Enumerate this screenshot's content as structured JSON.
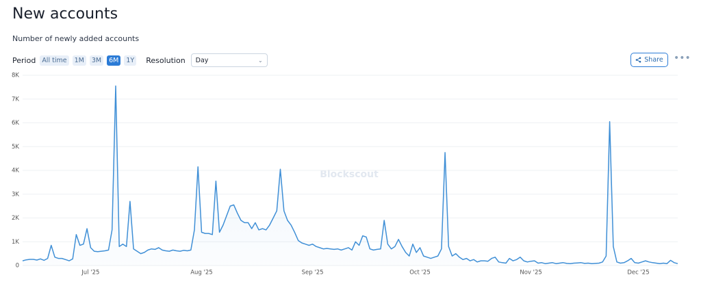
{
  "chart_data": {
    "type": "line",
    "title": "New accounts",
    "subtitle": "Number of newly added accounts",
    "categories": [
      null,
      null,
      null,
      null,
      null,
      null,
      null,
      null,
      null,
      null,
      null,
      null,
      null,
      null,
      null,
      null,
      null,
      null,
      null,
      "Jul '25",
      null,
      null,
      null,
      null,
      null,
      null,
      null,
      null,
      null,
      null,
      null,
      null,
      null,
      null,
      null,
      null,
      null,
      null,
      null,
      null,
      null,
      null,
      null,
      null,
      null,
      null,
      null,
      null,
      null,
      null,
      "Aug '25",
      null,
      null,
      null,
      null,
      null,
      null,
      null,
      null,
      null,
      null,
      null,
      null,
      null,
      null,
      null,
      null,
      null,
      null,
      null,
      null,
      null,
      null,
      null,
      null,
      null,
      null,
      null,
      null,
      null,
      null,
      "Sep '25",
      null,
      null,
      null,
      null,
      null,
      null,
      null,
      null,
      null,
      null,
      null,
      null,
      null,
      null,
      null,
      null,
      null,
      null,
      null,
      null,
      null,
      null,
      null,
      null,
      null,
      null,
      null,
      null,
      null,
      "Oct '25",
      null,
      null,
      null,
      null,
      null,
      null,
      null,
      null,
      null,
      null,
      null,
      null,
      null,
      null,
      null,
      null,
      null,
      null,
      null,
      null,
      null,
      null,
      null,
      null,
      null,
      null,
      null,
      null,
      null,
      null,
      "Nov '25",
      null,
      null,
      null,
      null,
      null,
      null,
      null,
      null,
      null,
      null,
      null,
      null,
      null,
      null,
      null,
      null,
      null,
      null,
      null,
      null,
      null,
      null,
      null,
      null,
      null,
      null,
      null,
      null,
      null,
      "Dec '25",
      null,
      null,
      null,
      null,
      null,
      null,
      null,
      null,
      null,
      null,
      null
    ],
    "values": [
      200,
      240,
      260,
      260,
      230,
      280,
      220,
      300,
      850,
      350,
      300,
      300,
      250,
      200,
      280,
      1300,
      850,
      900,
      1550,
      750,
      600,
      580,
      600,
      620,
      650,
      1500,
      7550,
      800,
      900,
      800,
      2700,
      700,
      600,
      500,
      550,
      650,
      700,
      680,
      750,
      650,
      620,
      600,
      650,
      620,
      600,
      640,
      620,
      650,
      1500,
      4150,
      1400,
      1350,
      1350,
      1300,
      3550,
      1400,
      1700,
      2100,
      2500,
      2550,
      2200,
      1900,
      1800,
      1800,
      1550,
      1800,
      1500,
      1550,
      1500,
      1700,
      2000,
      2300,
      4050,
      2300,
      1900,
      1700,
      1400,
      1050,
      950,
      900,
      850,
      900,
      800,
      750,
      700,
      720,
      700,
      680,
      700,
      650,
      700,
      750,
      650,
      1000,
      850,
      1250,
      1200,
      700,
      650,
      680,
      700,
      1900,
      900,
      700,
      800,
      1100,
      800,
      550,
      400,
      900,
      550,
      750,
      400,
      350,
      300,
      350,
      400,
      700,
      4750,
      800,
      400,
      500,
      350,
      250,
      300,
      200,
      250,
      150,
      200,
      200,
      180,
      300,
      350,
      150,
      120,
      100,
      300,
      200,
      250,
      350,
      200,
      150,
      180,
      200,
      100,
      120,
      80,
      100,
      120,
      80,
      100,
      120,
      90,
      80,
      100,
      110,
      120,
      90,
      100,
      80,
      90,
      100,
      150,
      400,
      6050,
      800,
      150,
      100,
      120,
      200,
      300,
      120,
      100,
      150,
      200,
      150,
      120,
      100,
      80,
      100,
      80,
      220,
      120,
      80
    ],
    "color": "#3f8fd6",
    "ylim": [
      0,
      8000
    ],
    "yticks": [
      0,
      {
        "value": 1000,
        "label": "1K"
      },
      {
        "value": 2000,
        "label": "2K"
      },
      {
        "value": 3000,
        "label": "3K"
      },
      {
        "value": 4000,
        "label": "4K"
      },
      {
        "value": 5000,
        "label": "5K"
      },
      {
        "value": 6000,
        "label": "6K"
      },
      {
        "value": 7000,
        "label": "7K"
      },
      {
        "value": 8000,
        "label": "8K"
      }
    ],
    "grid": true
  },
  "controls": {
    "period_label": "Period",
    "periods": [
      "All time",
      "1M",
      "3M",
      "6M",
      "1Y"
    ],
    "selected_period": 3,
    "resolution_label": "Resolution",
    "resolution": "Day",
    "share": "Share"
  },
  "watermark": "Blockscout"
}
